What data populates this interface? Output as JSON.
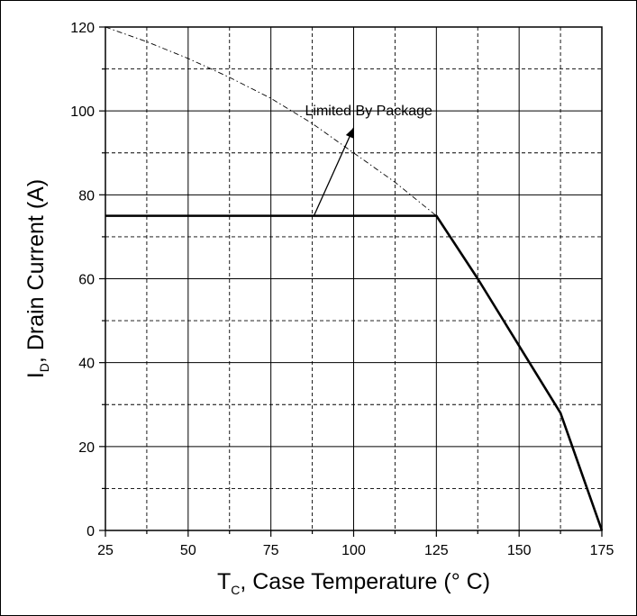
{
  "chart_data": {
    "type": "line",
    "xlabel": {
      "symbol": "T",
      "subscript": "C",
      "text": ", Case Temperature (° C)"
    },
    "ylabel": {
      "symbol": "I",
      "subscript": "D",
      "text": ",   Drain Current (A)"
    },
    "xlim": [
      25,
      175
    ],
    "ylim": [
      0,
      120
    ],
    "x_ticks": [
      25,
      50,
      75,
      100,
      125,
      150,
      175
    ],
    "y_ticks": [
      0,
      20,
      40,
      60,
      80,
      100,
      120
    ],
    "x_tick_labels": [
      "25",
      "50",
      "75",
      "100",
      "125",
      "150",
      "175"
    ],
    "y_tick_labels": [
      "0",
      "20",
      "40",
      "60",
      "80",
      "100",
      "120"
    ],
    "grid": true,
    "series": [
      {
        "style": "solid",
        "x": [
          25,
          125,
          137.5,
          150,
          162.5,
          175
        ],
        "y": [
          75,
          75,
          60,
          44,
          28,
          0
        ]
      },
      {
        "style": "dash-dot",
        "x": [
          25,
          37.5,
          50,
          62.5,
          75,
          87.5,
          100,
          112.5,
          125
        ],
        "y": [
          120,
          116.5,
          112.5,
          108,
          103,
          97,
          90,
          83,
          75
        ]
      }
    ],
    "annotations": [
      {
        "text": "Limited By Package",
        "x_from": 88,
        "y_from": 75,
        "x_to": 100,
        "y_to": 96
      }
    ]
  }
}
